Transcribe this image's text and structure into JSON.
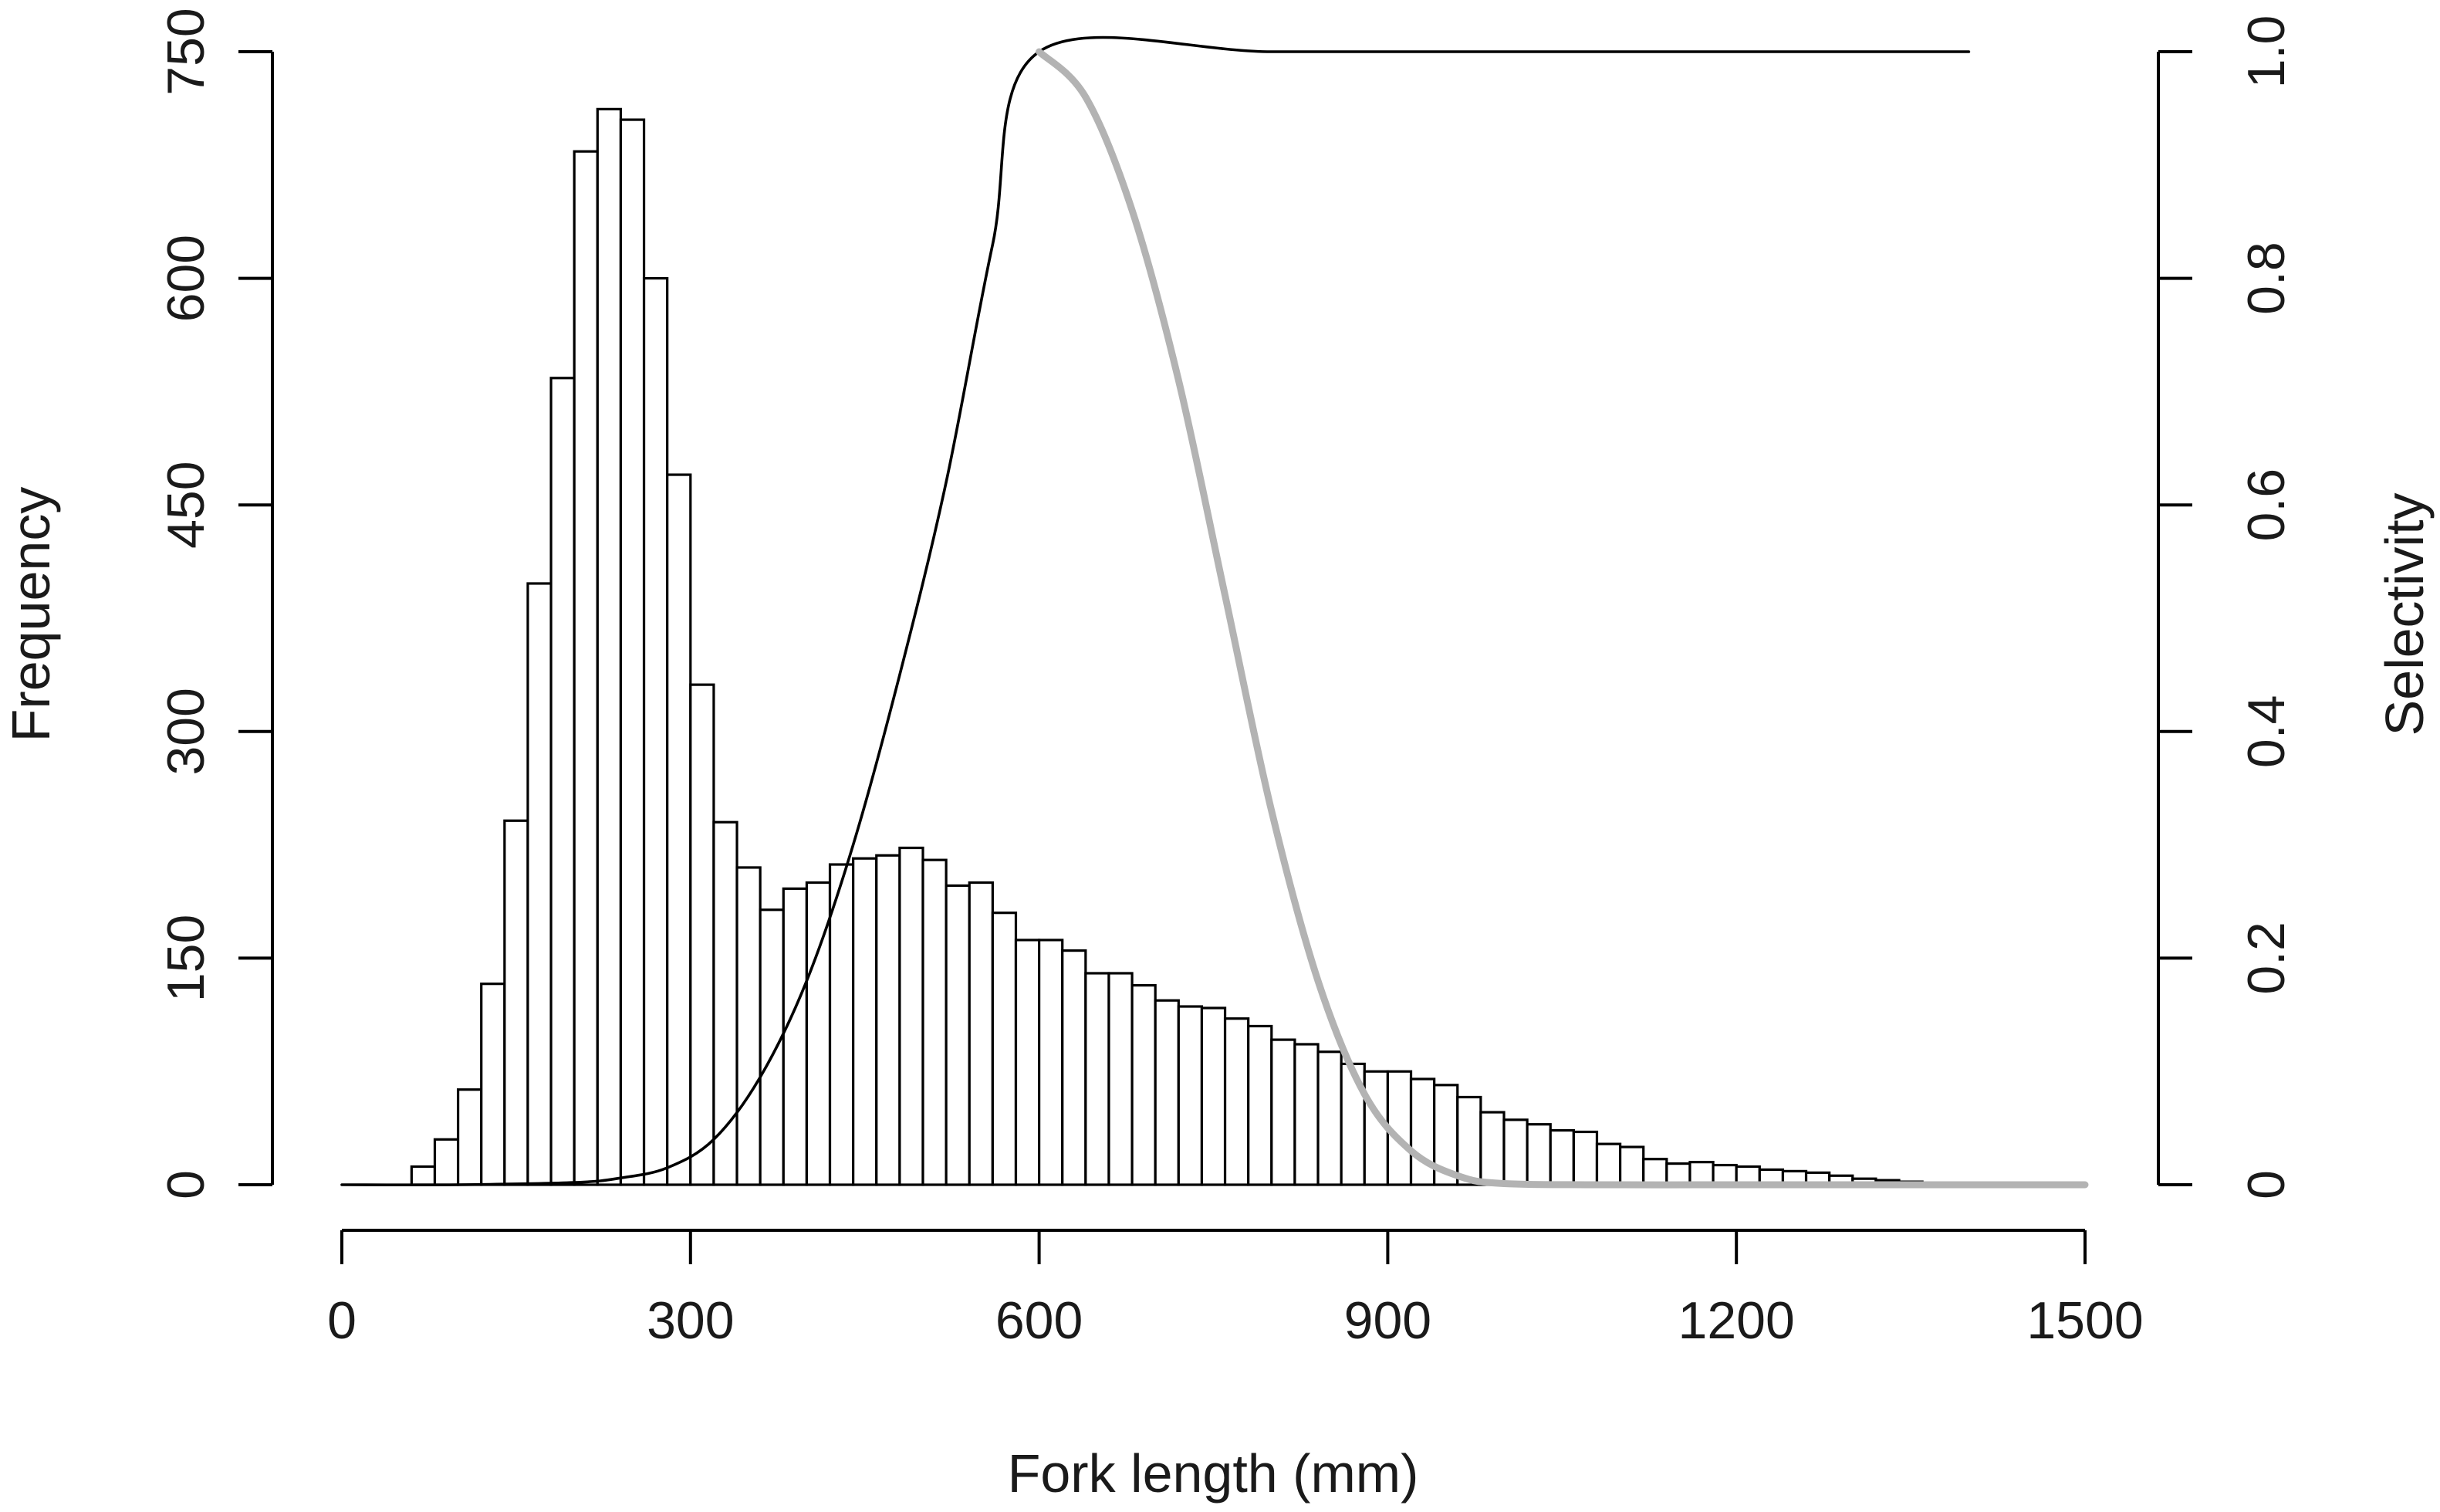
{
  "chart_data": {
    "type": "bar",
    "title": "",
    "xlabel": "Fork length (mm)",
    "ylabel": "Frequency",
    "y2label": "Selectivity",
    "xlim": [
      0,
      1500
    ],
    "ylim": [
      0,
      750
    ],
    "y2lim": [
      0,
      1
    ],
    "xticks": [
      0,
      300,
      600,
      900,
      1200,
      1500
    ],
    "yticks": [
      0,
      150,
      300,
      450,
      600,
      750
    ],
    "y2ticks": [
      0,
      0.2,
      0.4,
      0.6,
      0.8,
      1.0
    ],
    "y2ticklabels": [
      "0",
      "0.2",
      "0.4",
      "0.6",
      "0.8",
      "1.0"
    ],
    "grid": false,
    "bin_width": 20,
    "bins": [
      {
        "x0": 0,
        "count": 0
      },
      {
        "x0": 20,
        "count": 0
      },
      {
        "x0": 40,
        "count": 0
      },
      {
        "x0": 60,
        "count": 12
      },
      {
        "x0": 80,
        "count": 30
      },
      {
        "x0": 100,
        "count": 63
      },
      {
        "x0": 120,
        "count": 133
      },
      {
        "x0": 140,
        "count": 241
      },
      {
        "x0": 160,
        "count": 398
      },
      {
        "x0": 180,
        "count": 534
      },
      {
        "x0": 200,
        "count": 684
      },
      {
        "x0": 220,
        "count": 712
      },
      {
        "x0": 240,
        "count": 705
      },
      {
        "x0": 260,
        "count": 600
      },
      {
        "x0": 280,
        "count": 470
      },
      {
        "x0": 300,
        "count": 331
      },
      {
        "x0": 320,
        "count": 240
      },
      {
        "x0": 340,
        "count": 210
      },
      {
        "x0": 360,
        "count": 182
      },
      {
        "x0": 380,
        "count": 196
      },
      {
        "x0": 400,
        "count": 200
      },
      {
        "x0": 420,
        "count": 212
      },
      {
        "x0": 440,
        "count": 216
      },
      {
        "x0": 460,
        "count": 218
      },
      {
        "x0": 480,
        "count": 223
      },
      {
        "x0": 500,
        "count": 215
      },
      {
        "x0": 520,
        "count": 198
      },
      {
        "x0": 540,
        "count": 200
      },
      {
        "x0": 560,
        "count": 180
      },
      {
        "x0": 580,
        "count": 162
      },
      {
        "x0": 600,
        "count": 162
      },
      {
        "x0": 620,
        "count": 155
      },
      {
        "x0": 640,
        "count": 140
      },
      {
        "x0": 660,
        "count": 140
      },
      {
        "x0": 680,
        "count": 132
      },
      {
        "x0": 700,
        "count": 122
      },
      {
        "x0": 720,
        "count": 118
      },
      {
        "x0": 740,
        "count": 117
      },
      {
        "x0": 760,
        "count": 110
      },
      {
        "x0": 780,
        "count": 105
      },
      {
        "x0": 800,
        "count": 96
      },
      {
        "x0": 820,
        "count": 93
      },
      {
        "x0": 840,
        "count": 88
      },
      {
        "x0": 860,
        "count": 80
      },
      {
        "x0": 880,
        "count": 75
      },
      {
        "x0": 900,
        "count": 75
      },
      {
        "x0": 920,
        "count": 70
      },
      {
        "x0": 940,
        "count": 66
      },
      {
        "x0": 960,
        "count": 58
      },
      {
        "x0": 980,
        "count": 48
      },
      {
        "x0": 1000,
        "count": 43
      },
      {
        "x0": 1020,
        "count": 40
      },
      {
        "x0": 1040,
        "count": 36
      },
      {
        "x0": 1060,
        "count": 35
      },
      {
        "x0": 1080,
        "count": 27
      },
      {
        "x0": 1100,
        "count": 25
      },
      {
        "x0": 1120,
        "count": 17
      },
      {
        "x0": 1140,
        "count": 14
      },
      {
        "x0": 1160,
        "count": 15
      },
      {
        "x0": 1180,
        "count": 13
      },
      {
        "x0": 1200,
        "count": 12
      },
      {
        "x0": 1220,
        "count": 10
      },
      {
        "x0": 1240,
        "count": 9
      },
      {
        "x0": 1260,
        "count": 8
      },
      {
        "x0": 1280,
        "count": 6
      },
      {
        "x0": 1300,
        "count": 4
      },
      {
        "x0": 1320,
        "count": 3
      },
      {
        "x0": 1340,
        "count": 2
      },
      {
        "x0": 1360,
        "count": 1
      },
      {
        "x0": 1380,
        "count": 1
      },
      {
        "x0": 1400,
        "count": 0
      },
      {
        "x0": 1420,
        "count": 0
      }
    ],
    "series": [
      {
        "axis": "y2",
        "color": "#000000",
        "x": [
          0,
          100,
          200,
          240,
          280,
          320,
          360,
          400,
          440,
          480,
          520,
          560,
          600,
          800,
          1000,
          1200,
          1400
        ],
        "y": [
          0,
          0,
          0.002,
          0.006,
          0.015,
          0.04,
          0.095,
          0.18,
          0.3,
          0.45,
          0.62,
          0.83,
          1.0,
          1.0,
          1.0,
          1.0,
          1.0
        ]
      },
      {
        "axis": "y2",
        "color": "#b3b3b3",
        "x": [
          600,
          640,
          680,
          720,
          760,
          800,
          840,
          880,
          920,
          960,
          1000,
          1100,
          1200,
          1300,
          1400,
          1500
        ],
        "y": [
          1.0,
          0.96,
          0.86,
          0.71,
          0.52,
          0.33,
          0.18,
          0.08,
          0.03,
          0.008,
          0.001,
          0,
          0,
          0,
          0,
          0
        ]
      }
    ]
  }
}
